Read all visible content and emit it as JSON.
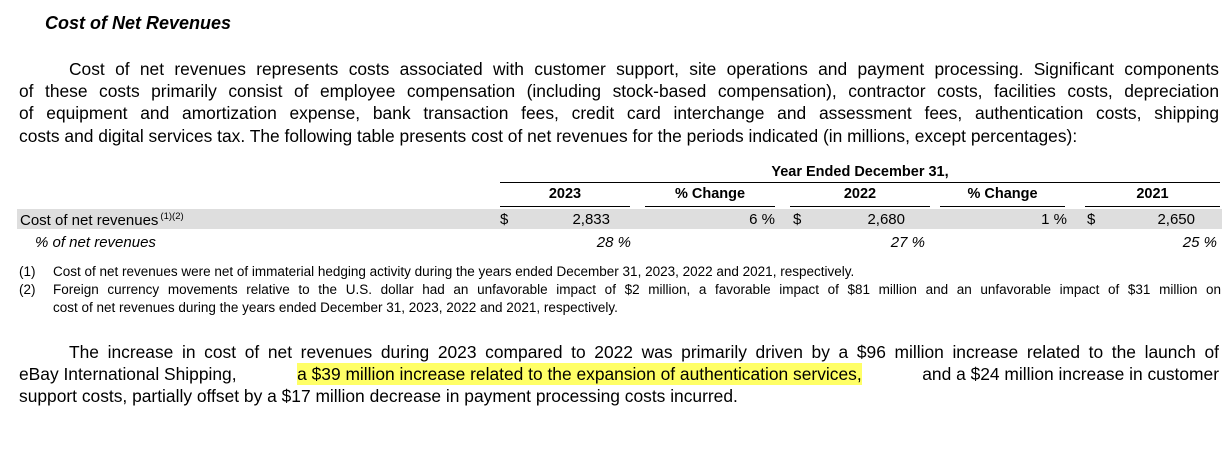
{
  "section_title": "Cost of Net Revenues",
  "intro_paragraph": {
    "line1": "Cost of net revenues represents costs associated with customer support, site operations and payment processing. Significant components",
    "line2": "of these costs primarily consist of employee compensation (including stock-based compensation), contractor costs, facilities costs, depreciation",
    "line3": "of equipment and amortization expense, bank transaction fees, credit card interchange and assessment fees, authentication costs, shipping",
    "line4": "costs and digital services tax. The following table presents cost of net revenues for the periods indicated (in millions, except percentages):"
  },
  "table": {
    "period_header": "Year Ended December 31,",
    "columns": [
      "2023",
      "% Change",
      "2022",
      "% Change",
      "2021"
    ],
    "rows": [
      {
        "label": "Cost of net revenues",
        "footnote_refs": "(1)(2)",
        "currency": "$",
        "values": [
          "2,833",
          "6 %",
          "2,680",
          "1 %",
          "2,650"
        ]
      },
      {
        "label": "% of net revenues",
        "values": [
          "28 %",
          "27 %",
          "25 %"
        ]
      }
    ]
  },
  "footnotes": [
    {
      "number": "(1)",
      "lines": [
        "Cost of net revenues were net of immaterial hedging activity during the years ended December 31, 2023, 2022 and 2021, respectively."
      ]
    },
    {
      "number": "(2)",
      "lines": [
        "Foreign currency movements relative to the U.S. dollar had an unfavorable impact of $2 million, a favorable impact of $81 million and an unfavorable impact of $31 million on",
        "cost of net revenues during the years ended December 31, 2023, 2022 and 2021, respectively."
      ]
    }
  ],
  "analysis_paragraph": {
    "line1": "The increase in cost of net revenues during 2023 compared to 2022 was primarily driven by a $96 million increase related to the launch of",
    "line2_before": "eBay International Shipping, ",
    "line2_highlight": "a $39 million increase related to the expansion of authentication services,",
    "line2_after": " and a $24 million increase in customer",
    "line3": "support costs, partially offset by a $17 million decrease in payment processing costs incurred."
  },
  "colors": {
    "highlight": "#ffff66",
    "row_shading": "#dedede"
  }
}
